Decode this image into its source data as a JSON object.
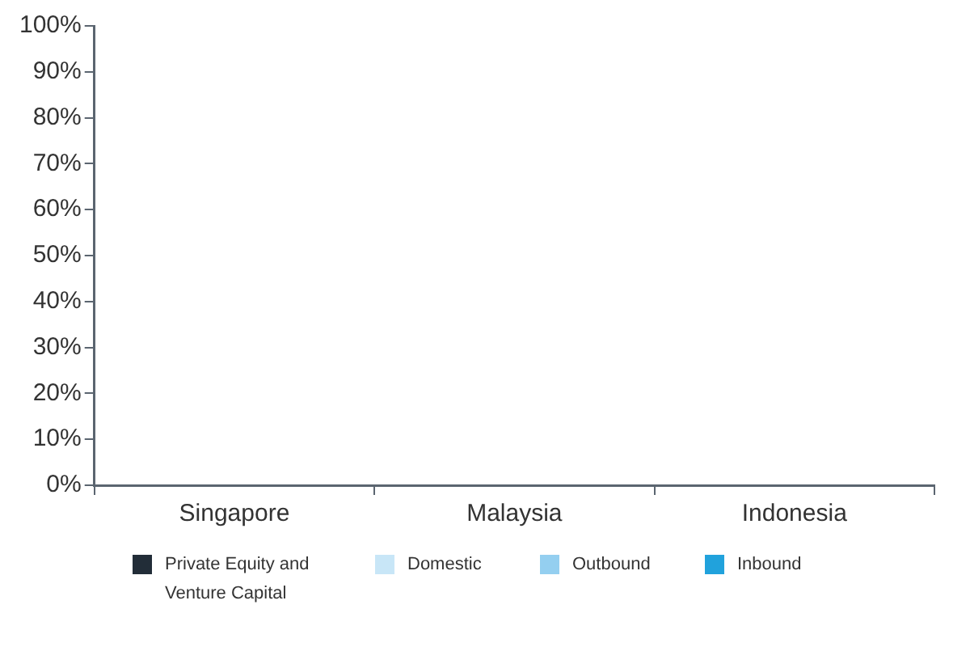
{
  "chart_data": {
    "type": "bar",
    "categories": [
      "Singapore",
      "Malaysia",
      "Indonesia"
    ],
    "series": [
      {
        "name": "Private Equity and Venture Capital",
        "color": "#222d38",
        "values": [
          null,
          null,
          null
        ]
      },
      {
        "name": "Domestic",
        "color": "#c8e6f7",
        "values": [
          null,
          null,
          null
        ]
      },
      {
        "name": "Outbound",
        "color": "#94cff0",
        "values": [
          null,
          null,
          null
        ]
      },
      {
        "name": "Inbound",
        "color": "#21a2dc",
        "values": [
          null,
          null,
          null
        ]
      }
    ],
    "ylim": [
      0,
      100
    ],
    "yticks": [
      {
        "value": 0,
        "label": "0%"
      },
      {
        "value": 10,
        "label": "10%"
      },
      {
        "value": 20,
        "label": "20%"
      },
      {
        "value": 30,
        "label": "30%"
      },
      {
        "value": 40,
        "label": "40%"
      },
      {
        "value": 50,
        "label": "50%"
      },
      {
        "value": 60,
        "label": "60%"
      },
      {
        "value": 70,
        "label": "70%"
      },
      {
        "value": 80,
        "label": "80%"
      },
      {
        "value": 90,
        "label": "90%"
      },
      {
        "value": 100,
        "label": "100%"
      }
    ],
    "grid": false,
    "legend": "bottom"
  }
}
